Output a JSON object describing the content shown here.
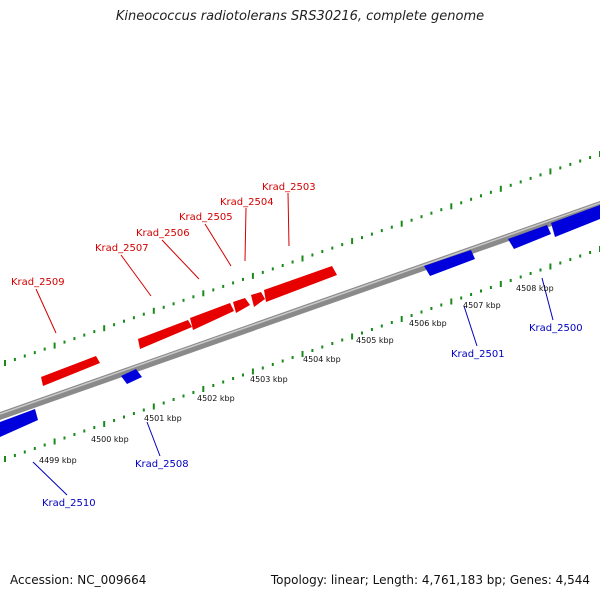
{
  "title": "Kineococcus radiotolerans SRS30216, complete genome",
  "footer": {
    "accession": "Accession: NC_009664",
    "stats": "Topology: linear; Length: 4,761,183 bp; Genes: 4,544"
  },
  "colors": {
    "forward_gene": "#e60000",
    "reverse_gene": "#0000dd",
    "forward_label": "#d40000",
    "reverse_label": "#0000c0",
    "tick": "#1a8a1a",
    "axis": "#8a8a8a"
  },
  "scale": {
    "labels": [
      "4499 kbp",
      "4500 kbp",
      "4501 kbp",
      "4502 kbp",
      "4503 kbp",
      "4504 kbp",
      "4505 kbp",
      "4506 kbp",
      "4507 kbp",
      "4508 kbp"
    ]
  },
  "genes": {
    "forward": [
      {
        "name": "Krad_2509"
      },
      {
        "name": "Krad_2507"
      },
      {
        "name": "Krad_2506"
      },
      {
        "name": "Krad_2505"
      },
      {
        "name": "Krad_2504"
      },
      {
        "name": "Krad_2503"
      }
    ],
    "reverse": [
      {
        "name": "Krad_2510"
      },
      {
        "name": "Krad_2508"
      },
      {
        "name": "Krad_2501"
      },
      {
        "name": "Krad_2500"
      }
    ]
  }
}
